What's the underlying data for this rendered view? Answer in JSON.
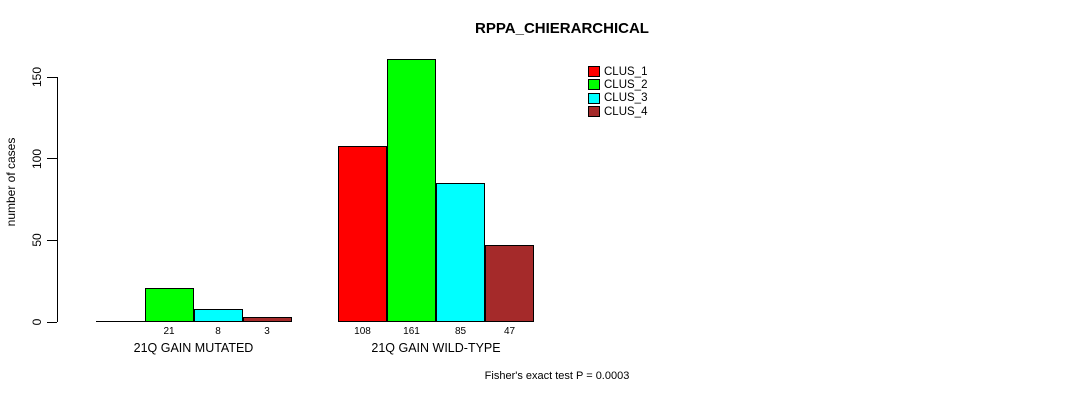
{
  "chart_data": {
    "type": "bar",
    "title": "RPPA_CHIERARCHICAL",
    "xlabel": "",
    "ylabel": "number of cases",
    "yticks": [
      0,
      50,
      100,
      150
    ],
    "ylim": [
      0,
      161
    ],
    "grid": false,
    "categories": [
      "21Q GAIN MUTATED",
      "21Q GAIN WILD-TYPE"
    ],
    "series": [
      {
        "name": "CLUS_1",
        "color": "#FF0000",
        "values": [
          0,
          108
        ]
      },
      {
        "name": "CLUS_2",
        "color": "#00FF00",
        "values": [
          21,
          161
        ]
      },
      {
        "name": "CLUS_3",
        "color": "#00FFFF",
        "values": [
          8,
          85
        ]
      },
      {
        "name": "CLUS_4",
        "color": "#A52A2A",
        "values": [
          3,
          47
        ]
      }
    ],
    "bar_value_labels": [
      [
        "",
        "21",
        "8",
        "3"
      ],
      [
        "108",
        "161",
        "85",
        "47"
      ]
    ],
    "legend": {
      "position": "top-right",
      "entries": [
        "CLUS_1",
        "CLUS_2",
        "CLUS_3",
        "CLUS_4"
      ]
    },
    "footnote": "Fisher's exact test P = 0.0003"
  }
}
